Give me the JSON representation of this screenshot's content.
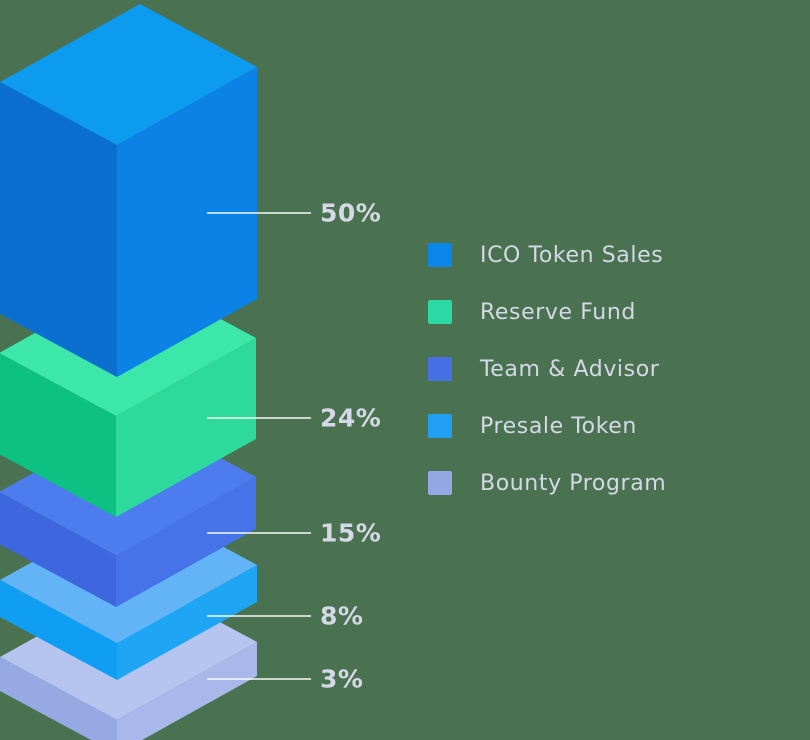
{
  "style": {
    "background": "#4A7251",
    "label_color": "#D5D8E6",
    "leader_line_color": "rgba(255,255,255,0.72)"
  },
  "chart_data": {
    "type": "bar",
    "variant": "isometric-3d-stacked-blocks",
    "title": "",
    "legend_position": "right",
    "categories": [
      "ICO Token Sales",
      "Reserve Fund",
      "Team & Advisor",
      "Presale Token",
      "Bounty Program"
    ],
    "values": [
      50,
      24,
      15,
      8,
      3
    ],
    "annotations": [
      "50%",
      "24%",
      "15%",
      "8%",
      "3%"
    ],
    "segments": [
      {
        "label": "ICO Token Sales",
        "value": 50,
        "value_label": "50%",
        "swatch": "#0A86E8",
        "faces": {
          "top": "#0D9BEF",
          "left": "#0B6FD0",
          "right": "#0A82E6"
        }
      },
      {
        "label": "Reserve Fund",
        "value": 24,
        "value_label": "24%",
        "swatch": "#2BD9A4",
        "faces": {
          "top": "#3DE7A9",
          "left": "#0DC183",
          "right": "#2EDA9B"
        }
      },
      {
        "label": "Team & Advisor",
        "value": 15,
        "value_label": "15%",
        "swatch": "#4670E4",
        "faces": {
          "top": "#4C7CEE",
          "left": "#3E66DE",
          "right": "#4673E8"
        }
      },
      {
        "label": "Presale Token",
        "value": 8,
        "value_label": "8%",
        "swatch": "#21A0F3",
        "faces": {
          "top": "#62B4F7",
          "left": "#109EF2",
          "right": "#1EA6F4"
        }
      },
      {
        "label": "Bounty Program",
        "value": 3,
        "value_label": "3%",
        "swatch": "#94A9E4",
        "faces": {
          "top": "#B6C5EF",
          "left": "#97A9E2",
          "right": "#A9B8EA"
        }
      }
    ]
  }
}
